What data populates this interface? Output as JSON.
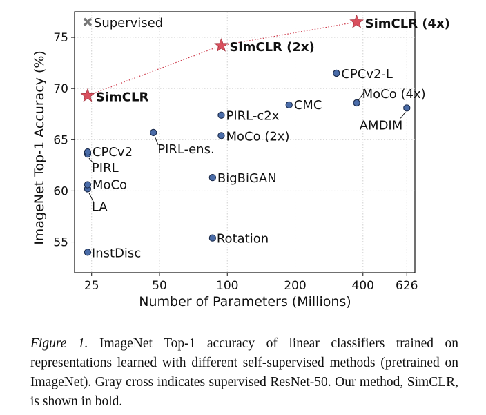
{
  "chart_data": {
    "type": "scatter",
    "xlabel": "Number of Parameters (Millions)",
    "ylabel": "ImageNet Top-1 Accuracy (%)",
    "x_scale": "log",
    "xlim": [
      21,
      680
    ],
    "ylim": [
      52,
      77.5
    ],
    "xticks": [
      25,
      50,
      100,
      200,
      400,
      626
    ],
    "yticks": [
      55,
      60,
      65,
      70,
      75
    ],
    "grid": true,
    "points": [
      {
        "label": "InstDisc",
        "x": 24,
        "y": 54.0,
        "kind": "other"
      },
      {
        "label": "Rotation",
        "x": 86,
        "y": 55.4,
        "kind": "other"
      },
      {
        "label": "BigBiGAN",
        "x": 86,
        "y": 61.3,
        "kind": "other"
      },
      {
        "label": "LA",
        "x": 24,
        "y": 60.2,
        "kind": "other"
      },
      {
        "label": "MoCo",
        "x": 24,
        "y": 60.6,
        "kind": "other"
      },
      {
        "label": "PIRL",
        "x": 24,
        "y": 63.6,
        "kind": "other"
      },
      {
        "label": "CPCv2",
        "x": 24,
        "y": 63.8,
        "kind": "other"
      },
      {
        "label": "PIRL-ens.",
        "x": 47,
        "y": 65.7,
        "kind": "other"
      },
      {
        "label": "MoCo (2x)",
        "x": 94,
        "y": 65.4,
        "kind": "other"
      },
      {
        "label": "PIRL-c2x",
        "x": 94,
        "y": 67.4,
        "kind": "other"
      },
      {
        "label": "CMC",
        "x": 188,
        "y": 68.4,
        "kind": "other"
      },
      {
        "label": "CPCv2-L",
        "x": 305,
        "y": 71.5,
        "kind": "other"
      },
      {
        "label": "MoCo (4x)",
        "x": 375,
        "y": 68.6,
        "kind": "other"
      },
      {
        "label": "AMDIM",
        "x": 626,
        "y": 68.1,
        "kind": "other"
      },
      {
        "label": "Supervised",
        "x": 24,
        "y": 76.5,
        "kind": "supervised"
      },
      {
        "label": "SimCLR",
        "x": 24,
        "y": 69.3,
        "kind": "simclr"
      },
      {
        "label": "SimCLR (2x)",
        "x": 94,
        "y": 74.2,
        "kind": "simclr"
      },
      {
        "label": "SimCLR (4x)",
        "x": 375,
        "y": 76.5,
        "kind": "simclr"
      }
    ],
    "colors": {
      "point": "#4a6ca8",
      "point_stroke": "#1a2a4a",
      "star": "#d9505e",
      "cross": "#777777",
      "line": "#cc3344"
    }
  },
  "caption": {
    "label": "Figure 1.",
    "text": "ImageNet Top-1 accuracy of linear classifiers trained on representations learned with different self-supervised methods (pretrained on ImageNet). Gray cross indicates supervised ResNet-50. Our method, SimCLR, is shown in bold."
  }
}
